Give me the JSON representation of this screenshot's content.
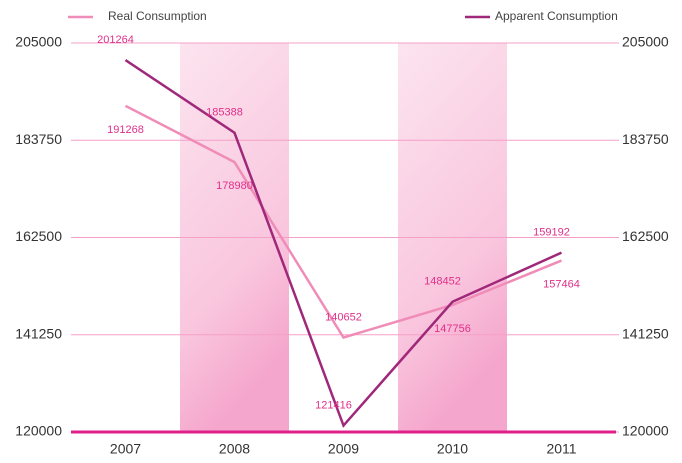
{
  "chart_data": {
    "type": "line",
    "categories": [
      "2007",
      "2008",
      "2009",
      "2010",
      "2011"
    ],
    "series": [
      {
        "name": "Real Consumption",
        "color": "#f08cb8",
        "values": [
          191268,
          178980,
          140652,
          147756,
          157464
        ]
      },
      {
        "name": "Apparent Consumption",
        "color": "#a0287a",
        "values": [
          201264,
          185388,
          121416,
          148452,
          159192
        ]
      }
    ],
    "ylim": [
      120000,
      205000
    ],
    "yticks": [
      120000,
      141250,
      162500,
      183750,
      205000
    ],
    "y2lim": [
      120000,
      205000
    ],
    "y2ticks": [
      120000,
      141250,
      162500,
      183750,
      205000
    ],
    "grid": true,
    "legend": "top"
  }
}
